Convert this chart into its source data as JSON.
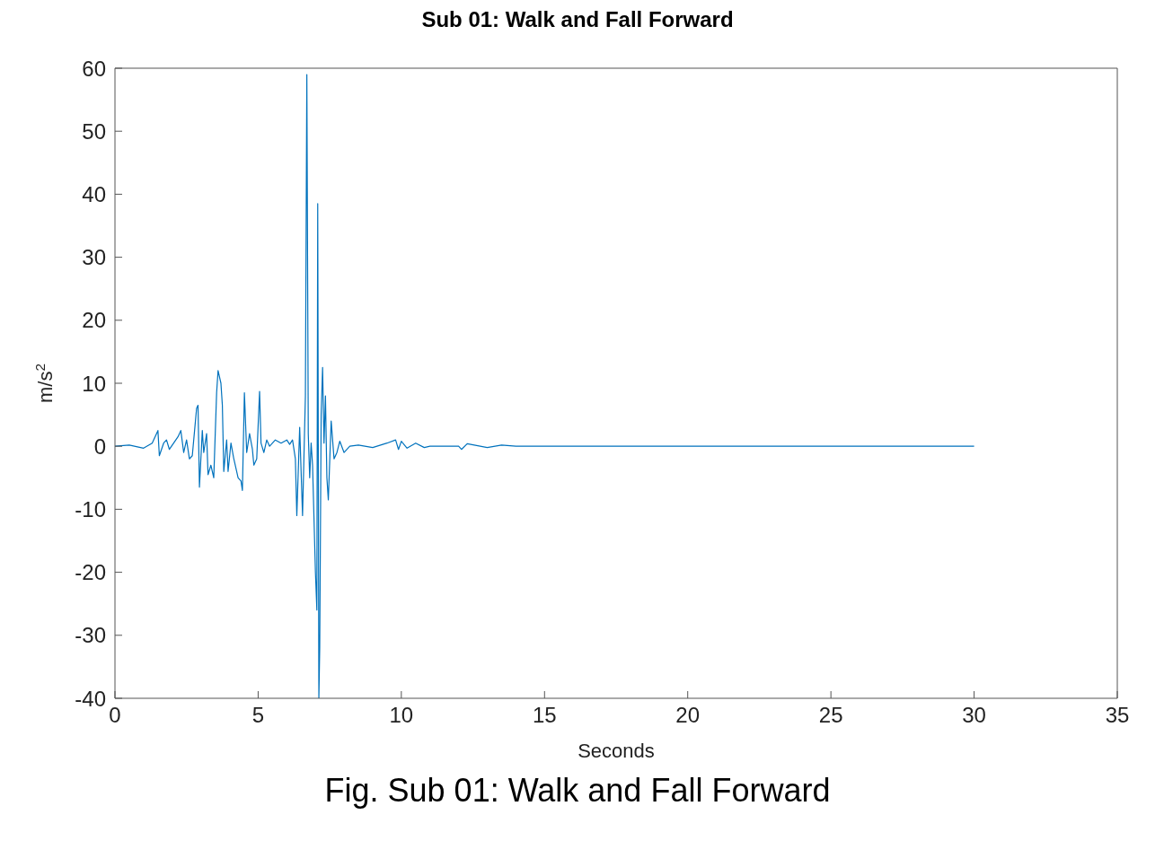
{
  "chart_data": {
    "type": "line",
    "title": "Sub 01: Walk and Fall Forward",
    "xlabel": "Seconds",
    "ylabel": "m/s$^{2}$",
    "x": [
      0,
      0.5,
      1.0,
      1.3,
      1.5,
      1.55,
      1.7,
      1.8,
      1.9,
      2.2,
      2.3,
      2.4,
      2.5,
      2.6,
      2.7,
      2.85,
      2.9,
      2.95,
      3.05,
      3.1,
      3.2,
      3.25,
      3.35,
      3.45,
      3.55,
      3.6,
      3.7,
      3.75,
      3.8,
      3.9,
      3.95,
      4.05,
      4.15,
      4.3,
      4.4,
      4.45,
      4.52,
      4.6,
      4.7,
      4.8,
      4.85,
      4.95,
      5.05,
      5.1,
      5.2,
      5.3,
      5.4,
      5.6,
      5.8,
      6.0,
      6.1,
      6.2,
      6.3,
      6.35,
      6.45,
      6.55,
      6.65,
      6.7,
      6.75,
      6.8,
      6.85,
      6.9,
      7.0,
      7.05,
      7.08,
      7.12,
      7.15,
      7.2,
      7.25,
      7.3,
      7.35,
      7.4,
      7.45,
      7.55,
      7.65,
      7.75,
      7.85,
      8.0,
      8.2,
      8.5,
      9.0,
      9.5,
      9.8,
      9.9,
      10.0,
      10.2,
      10.5,
      10.8,
      11,
      12,
      12.1,
      12.3,
      13,
      13.5,
      14,
      20,
      30
    ],
    "series": [
      {
        "color": "#0072bd",
        "values": [
          0,
          0.2,
          -0.3,
          0.5,
          2.5,
          -1.5,
          0.5,
          1,
          -0.5,
          1.5,
          2.5,
          -1,
          1,
          -2,
          -1.5,
          6,
          6.5,
          -6.5,
          2.5,
          -1,
          2,
          -4.5,
          -3,
          -5,
          8.5,
          12,
          10,
          6.5,
          -4,
          1,
          -4,
          0.5,
          -2,
          -5,
          -5.5,
          -7,
          8.5,
          -1,
          2,
          -0.5,
          -3,
          -2,
          8.7,
          0.5,
          -1,
          1,
          0,
          1,
          0.5,
          1,
          0.3,
          1,
          -2,
          -11,
          3,
          -11,
          8,
          59,
          2,
          -5,
          0.5,
          -3,
          -20,
          -26,
          38.5,
          -40,
          -32,
          5,
          12.5,
          0.5,
          8,
          -5,
          -8.5,
          4,
          -2,
          -1,
          0.8,
          -1,
          0,
          0.2,
          -0.2,
          0.5,
          1,
          -0.5,
          0.8,
          -0.3,
          0.5,
          -0.2,
          0,
          0,
          -0.5,
          0.4,
          -0.2,
          0.2,
          0,
          0,
          0
        ]
      }
    ],
    "xlim": [
      0,
      35
    ],
    "xticks": [
      0,
      5,
      10,
      15,
      20,
      25,
      30,
      35
    ],
    "ylim": [
      -40,
      60
    ],
    "yticks": [
      -40,
      -30,
      -20,
      -10,
      0,
      10,
      20,
      30,
      40,
      50,
      60
    ],
    "grid": false,
    "legend": false,
    "marker": "none",
    "line_style": "solid",
    "annotations": [
      "Fig. Sub 01: Walk and Fall Forward"
    ]
  }
}
